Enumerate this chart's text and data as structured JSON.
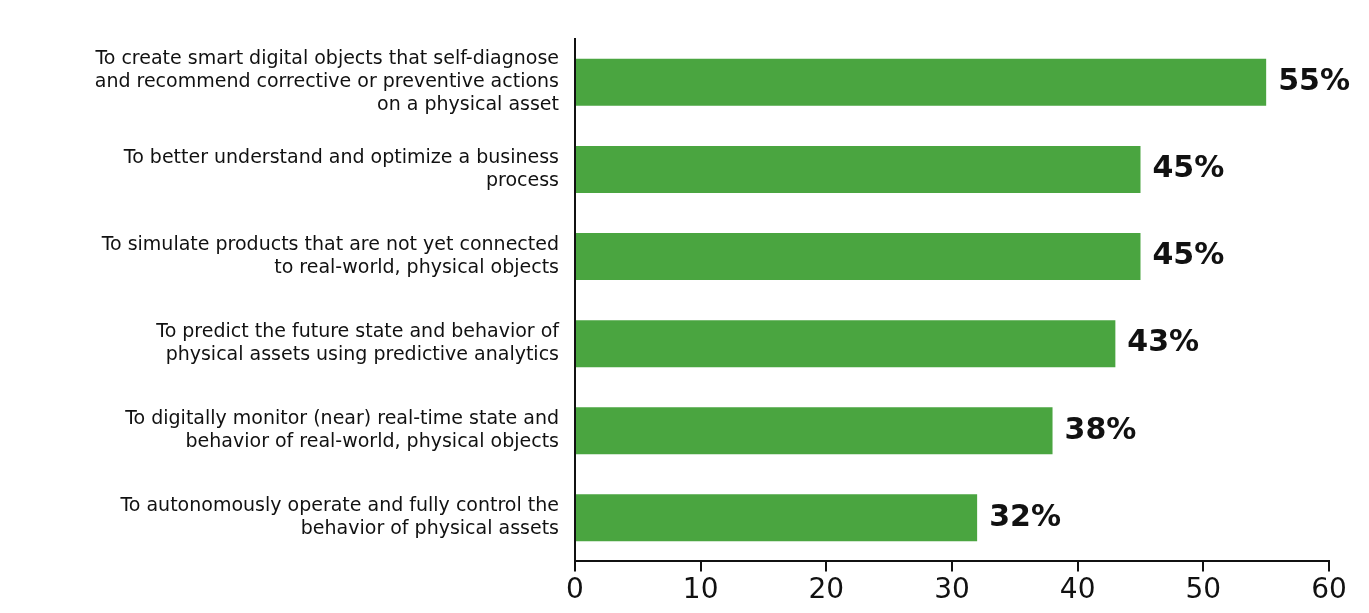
{
  "chart_data": {
    "type": "bar",
    "orientation": "horizontal",
    "categories": [
      "To create smart digital objects that self-diagnose and recommend corrective or preventive actions on a physical asset",
      "To better understand and optimize a business process",
      "To simulate products that are not yet connected to real-world, physical objects",
      "To predict the future state and behavior of physical assets using predictive analytics",
      "To digitally monitor (near) real-time state and behavior of real-world, physical objects",
      "To autonomously operate and fully control the behavior of physical assets"
    ],
    "values": [
      55,
      45,
      45,
      43,
      38,
      32
    ],
    "value_labels": [
      "55%",
      "45%",
      "45%",
      "43%",
      "38%",
      "32%"
    ],
    "color": "#4aa540",
    "xlim": [
      0,
      60
    ],
    "xticks": [
      0,
      10,
      20,
      30,
      40,
      50,
      60
    ]
  }
}
